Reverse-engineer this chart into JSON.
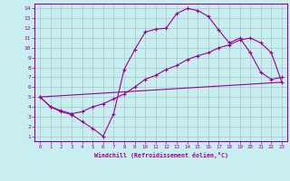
{
  "xlabel": "Windchill (Refroidissement éolien,°C)",
  "bg_color": "#c8eef0",
  "line_color": "#990099",
  "grid_color": "#9bbcbe",
  "xlim": [
    -0.5,
    23.5
  ],
  "ylim": [
    0.5,
    14.5
  ],
  "xticks": [
    0,
    1,
    2,
    3,
    4,
    5,
    6,
    7,
    8,
    9,
    10,
    11,
    12,
    13,
    14,
    15,
    16,
    17,
    18,
    19,
    20,
    21,
    22,
    23
  ],
  "yticks": [
    1,
    2,
    3,
    4,
    5,
    6,
    7,
    8,
    9,
    10,
    11,
    12,
    13,
    14
  ],
  "line1_x": [
    0,
    1,
    2,
    3,
    4,
    5,
    6,
    7,
    8,
    9,
    10,
    11,
    12,
    13,
    14,
    15,
    16,
    17,
    18,
    19,
    20,
    21,
    22,
    23
  ],
  "line1_y": [
    5.0,
    4.0,
    3.5,
    3.2,
    2.5,
    1.8,
    1.0,
    3.3,
    7.8,
    9.8,
    11.6,
    11.9,
    12.0,
    13.5,
    14.0,
    13.8,
    13.2,
    11.8,
    10.5,
    11.0,
    9.5,
    7.5,
    6.8,
    7.0
  ],
  "line2_x": [
    0,
    1,
    2,
    3,
    4,
    5,
    6,
    7,
    8,
    9,
    10,
    11,
    12,
    13,
    14,
    15,
    16,
    17,
    18,
    19,
    20,
    21,
    22,
    23
  ],
  "line2_y": [
    5.0,
    4.0,
    3.6,
    3.3,
    3.5,
    4.0,
    4.3,
    4.8,
    5.3,
    6.0,
    6.8,
    7.2,
    7.8,
    8.2,
    8.8,
    9.2,
    9.5,
    10.0,
    10.3,
    10.8,
    11.0,
    10.5,
    9.5,
    6.5
  ],
  "line3_x": [
    0,
    23
  ],
  "line3_y": [
    5.0,
    6.5
  ]
}
